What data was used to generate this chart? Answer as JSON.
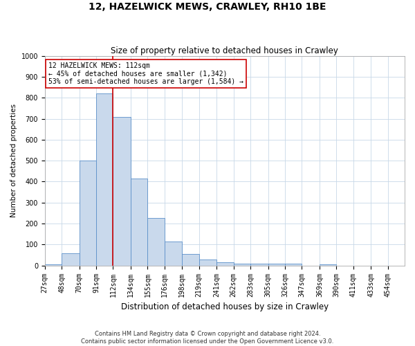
{
  "title": "12, HAZELWICK MEWS, CRAWLEY, RH10 1BE",
  "subtitle": "Size of property relative to detached houses in Crawley",
  "xlabel": "Distribution of detached houses by size in Crawley",
  "ylabel": "Number of detached properties",
  "bin_labels": [
    "27sqm",
    "48sqm",
    "70sqm",
    "91sqm",
    "112sqm",
    "134sqm",
    "155sqm",
    "176sqm",
    "198sqm",
    "219sqm",
    "241sqm",
    "262sqm",
    "283sqm",
    "305sqm",
    "326sqm",
    "347sqm",
    "369sqm",
    "390sqm",
    "411sqm",
    "433sqm",
    "454sqm"
  ],
  "bar_heights": [
    5,
    60,
    500,
    820,
    710,
    415,
    228,
    115,
    55,
    30,
    15,
    10,
    10,
    10,
    8,
    0,
    7,
    0,
    0,
    0,
    0
  ],
  "bar_color": "#c9d9ec",
  "bar_edge_color": "#5b8fc9",
  "annotation_line1": "12 HAZELWICK MEWS: 112sqm",
  "annotation_line2": "← 45% of detached houses are smaller (1,342)",
  "annotation_line3": "53% of semi-detached houses are larger (1,584) →",
  "annotation_box_color": "#ffffff",
  "annotation_box_edge_color": "#cc0000",
  "footer_line1": "Contains HM Land Registry data © Crown copyright and database right 2024.",
  "footer_line2": "Contains public sector information licensed under the Open Government Licence v3.0.",
  "bin_edges": [
    27,
    48,
    70,
    91,
    112,
    134,
    155,
    176,
    198,
    219,
    241,
    262,
    283,
    305,
    326,
    347,
    369,
    390,
    411,
    433,
    454,
    475
  ],
  "ylim": [
    0,
    1000
  ],
  "yticks": [
    0,
    100,
    200,
    300,
    400,
    500,
    600,
    700,
    800,
    900,
    1000
  ],
  "property_size": 112,
  "title_fontsize": 10,
  "subtitle_fontsize": 8.5,
  "xlabel_fontsize": 8.5,
  "ylabel_fontsize": 7.5,
  "tick_fontsize": 7,
  "annotation_fontsize": 7,
  "footer_fontsize": 6
}
